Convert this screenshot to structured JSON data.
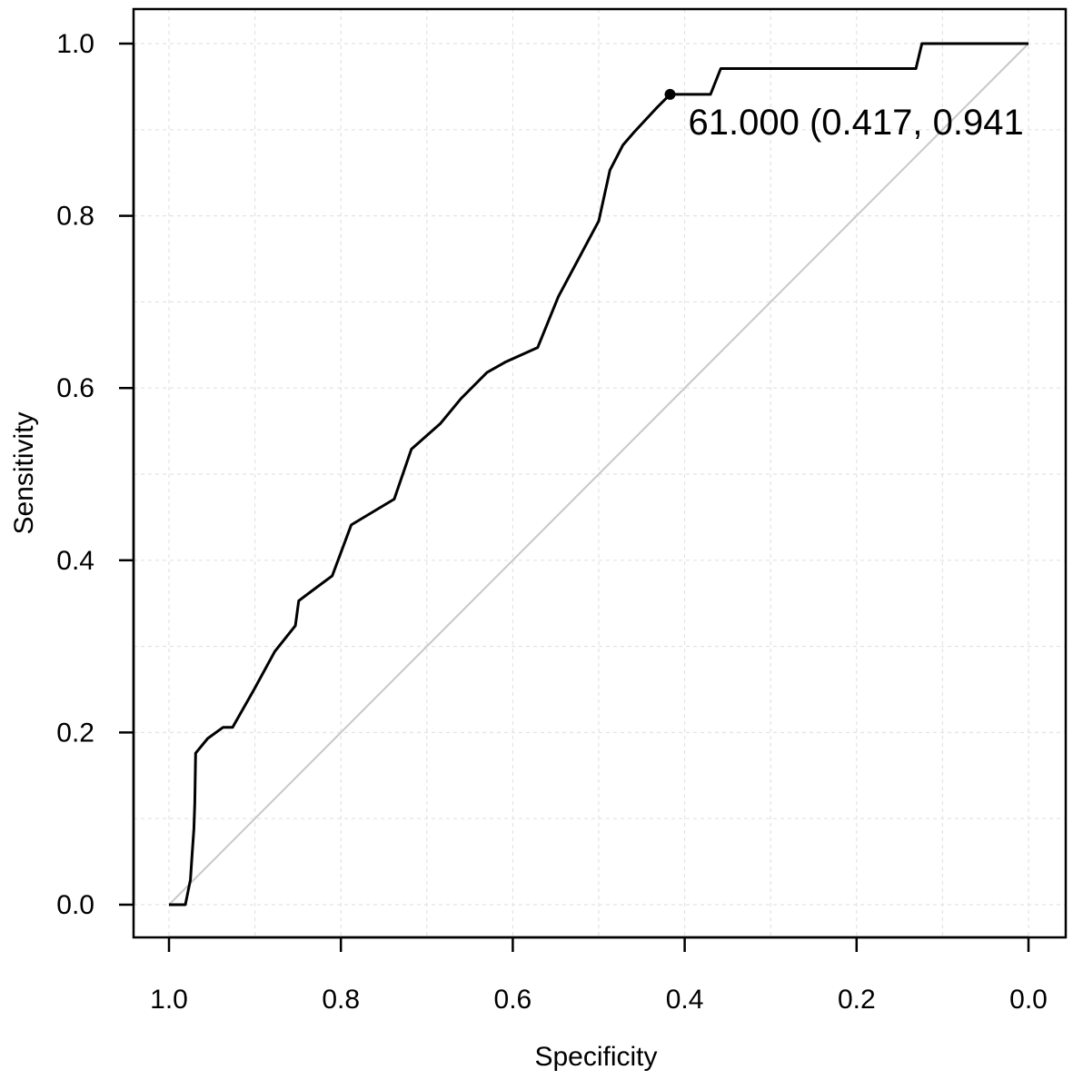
{
  "chart_data": {
    "type": "line",
    "xlabel": "Specificity",
    "ylabel": "Sensitivity",
    "xlim": [
      1.0,
      0.0
    ],
    "ylim": [
      0.0,
      1.0
    ],
    "x_reversed": true,
    "grid": true,
    "x_ticks": [
      1.0,
      0.8,
      0.6,
      0.4,
      0.2,
      0.0
    ],
    "x_tick_labels": [
      "1.0",
      "0.8",
      "0.6",
      "0.4",
      "0.2",
      "0.0"
    ],
    "y_ticks": [
      0.0,
      0.2,
      0.4,
      0.6,
      0.8,
      1.0
    ],
    "y_tick_labels": [
      "0.0",
      "0.2",
      "0.4",
      "0.6",
      "0.8",
      "1.0"
    ],
    "reference_line": {
      "from": [
        1.0,
        0.0
      ],
      "to": [
        0.0,
        1.0
      ],
      "color": "#c8c8c8"
    },
    "series": [
      {
        "color": "#000000",
        "specificity": [
          1.0,
          0.981,
          0.975,
          0.973,
          0.971,
          0.97,
          0.969,
          0.955,
          0.937,
          0.926,
          0.901,
          0.877,
          0.853,
          0.849,
          0.833,
          0.81,
          0.788,
          0.758,
          0.738,
          0.718,
          0.684,
          0.66,
          0.63,
          0.609,
          0.571,
          0.547,
          0.5,
          0.487,
          0.472,
          0.459,
          0.432,
          0.417,
          0.37,
          0.358,
          0.131,
          0.124,
          0.0
        ],
        "sensitivity": [
          0.0,
          0.0,
          0.029,
          0.059,
          0.088,
          0.118,
          0.176,
          0.193,
          0.206,
          0.206,
          0.25,
          0.294,
          0.324,
          0.353,
          0.365,
          0.382,
          0.441,
          0.459,
          0.471,
          0.529,
          0.559,
          0.588,
          0.618,
          0.63,
          0.647,
          0.706,
          0.794,
          0.853,
          0.882,
          0.897,
          0.926,
          0.941,
          0.941,
          0.971,
          0.971,
          1.0,
          1.0
        ]
      }
    ],
    "annotations": [
      {
        "text": "61.000 (0.417, 0.941",
        "specificity": 0.417,
        "sensitivity": 0.941
      }
    ]
  }
}
